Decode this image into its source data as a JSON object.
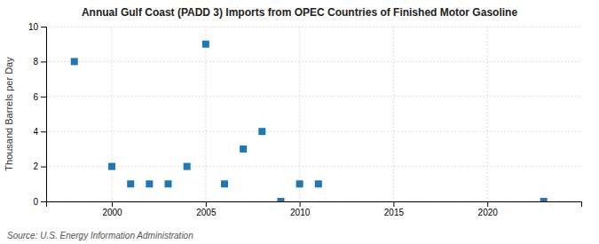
{
  "chart_data": {
    "type": "scatter",
    "title": "Annual Gulf Coast (PADD 3) Imports from OPEC Countries of Finished Motor Gasoline",
    "y_label": "Thousand Barrels per Day",
    "annotations": [
      "Source: U.S. Energy Information Administration"
    ],
    "x": [
      1998,
      2000,
      2001,
      2002,
      2003,
      2004,
      2005,
      2006,
      2007,
      2008,
      2009,
      2010,
      2011,
      2023
    ],
    "values": [
      8,
      2,
      1,
      1,
      1,
      2,
      9,
      1,
      3,
      4,
      0,
      1,
      1,
      0
    ],
    "xlim": [
      1996.5,
      2025
    ],
    "ylim": [
      0,
      10
    ],
    "xticks": [
      2000,
      2005,
      2010,
      2015,
      2020
    ],
    "yticks": [
      0,
      2,
      4,
      6,
      8,
      10
    ],
    "marker": "square",
    "grid": true
  }
}
